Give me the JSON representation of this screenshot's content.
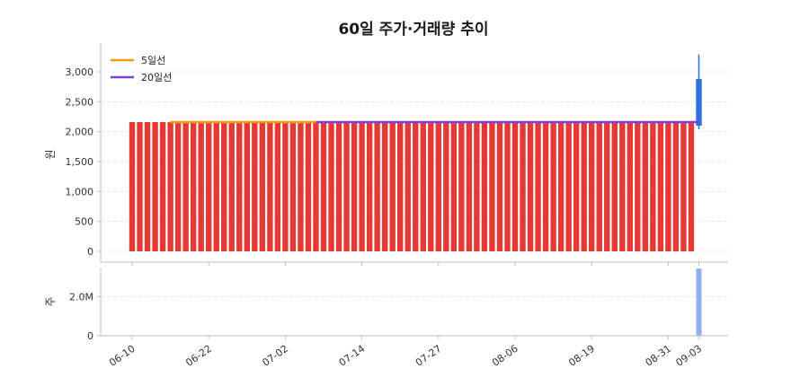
{
  "chart_data": {
    "type": "candlestick_volume",
    "title": "60일 주가·거래량 추이",
    "price_panel": {
      "ylabel": "원",
      "ylim": [
        -180,
        3480
      ],
      "yticks": [
        0,
        500,
        1000,
        1500,
        2000,
        2500,
        3000
      ],
      "ytick_labels": [
        "0",
        "500",
        "1,000",
        "1,500",
        "2,000",
        "2,500",
        "3,000"
      ],
      "grid": true,
      "legend_position": "top-left"
    },
    "volume_panel": {
      "ylabel": "주",
      "ylim": [
        0,
        3500000
      ],
      "yticks": [
        0,
        2000000
      ],
      "ytick_labels": [
        "0",
        "2.0M"
      ],
      "grid": true
    },
    "x_ticks": [
      {
        "index": 0,
        "label": "06-10"
      },
      {
        "index": 10,
        "label": "06-22"
      },
      {
        "index": 20,
        "label": "07-02"
      },
      {
        "index": 30,
        "label": "07-14"
      },
      {
        "index": 40,
        "label": "07-27"
      },
      {
        "index": 50,
        "label": "08-06"
      },
      {
        "index": 60,
        "label": "08-19"
      },
      {
        "index": 70,
        "label": "08-31"
      },
      {
        "index": 74,
        "label": "09-03"
      }
    ],
    "candles": {
      "flat_run": {
        "start_index": 0,
        "end_index": 73,
        "open": 0,
        "close": 2160
      },
      "last": {
        "index": 74,
        "open": 2100,
        "close": 2880,
        "high": 3290,
        "low": 2040
      }
    },
    "series": [
      {
        "name": "5일선",
        "color": "#f39c12",
        "start_index": 5,
        "end_index": 24,
        "value": 2160
      },
      {
        "name": "20일선",
        "color": "#7b3fe4",
        "start_index": 24,
        "end_index": 74,
        "value": 2160
      }
    ],
    "volume": {
      "index": 74,
      "value": 3450000
    },
    "colors": {
      "up": "#e53935",
      "last_up": "#2f6fe0",
      "volume": "#8fb0f0"
    }
  }
}
